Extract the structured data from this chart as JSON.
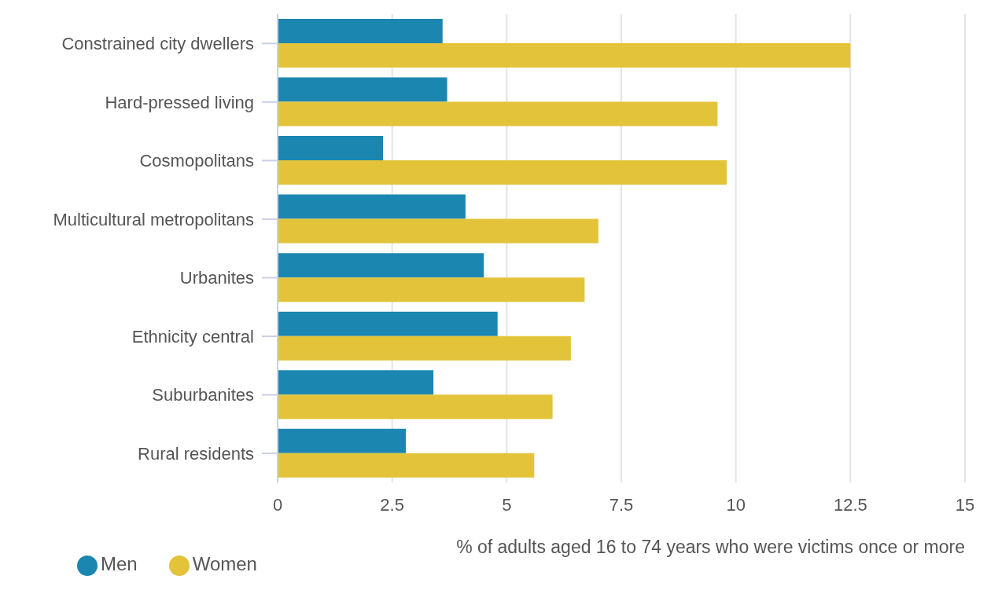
{
  "chart_data": {
    "type": "bar",
    "orientation": "horizontal",
    "xlabel": "% of adults aged 16 to 74 years who were victims once or more",
    "categories": [
      "Constrained city dwellers",
      "Hard-pressed living",
      "Cosmopolitans",
      "Multicultural metropolitans",
      "Urbanites",
      "Ethnicity central",
      "Suburbanites",
      "Rural residents"
    ],
    "series": [
      {
        "name": "Men",
        "color": "#1b86b0",
        "values": [
          3.6,
          3.7,
          2.3,
          4.1,
          4.5,
          4.8,
          3.4,
          2.8
        ]
      },
      {
        "name": "Women",
        "color": "#e3c33a",
        "values": [
          12.5,
          9.6,
          9.8,
          7.0,
          6.7,
          6.4,
          6.0,
          5.6
        ]
      }
    ],
    "xlim": [
      0,
      15
    ],
    "xticks": [
      0,
      2.5,
      5,
      7.5,
      10,
      12.5,
      15
    ],
    "grid": "x",
    "legend": "bottom left"
  }
}
